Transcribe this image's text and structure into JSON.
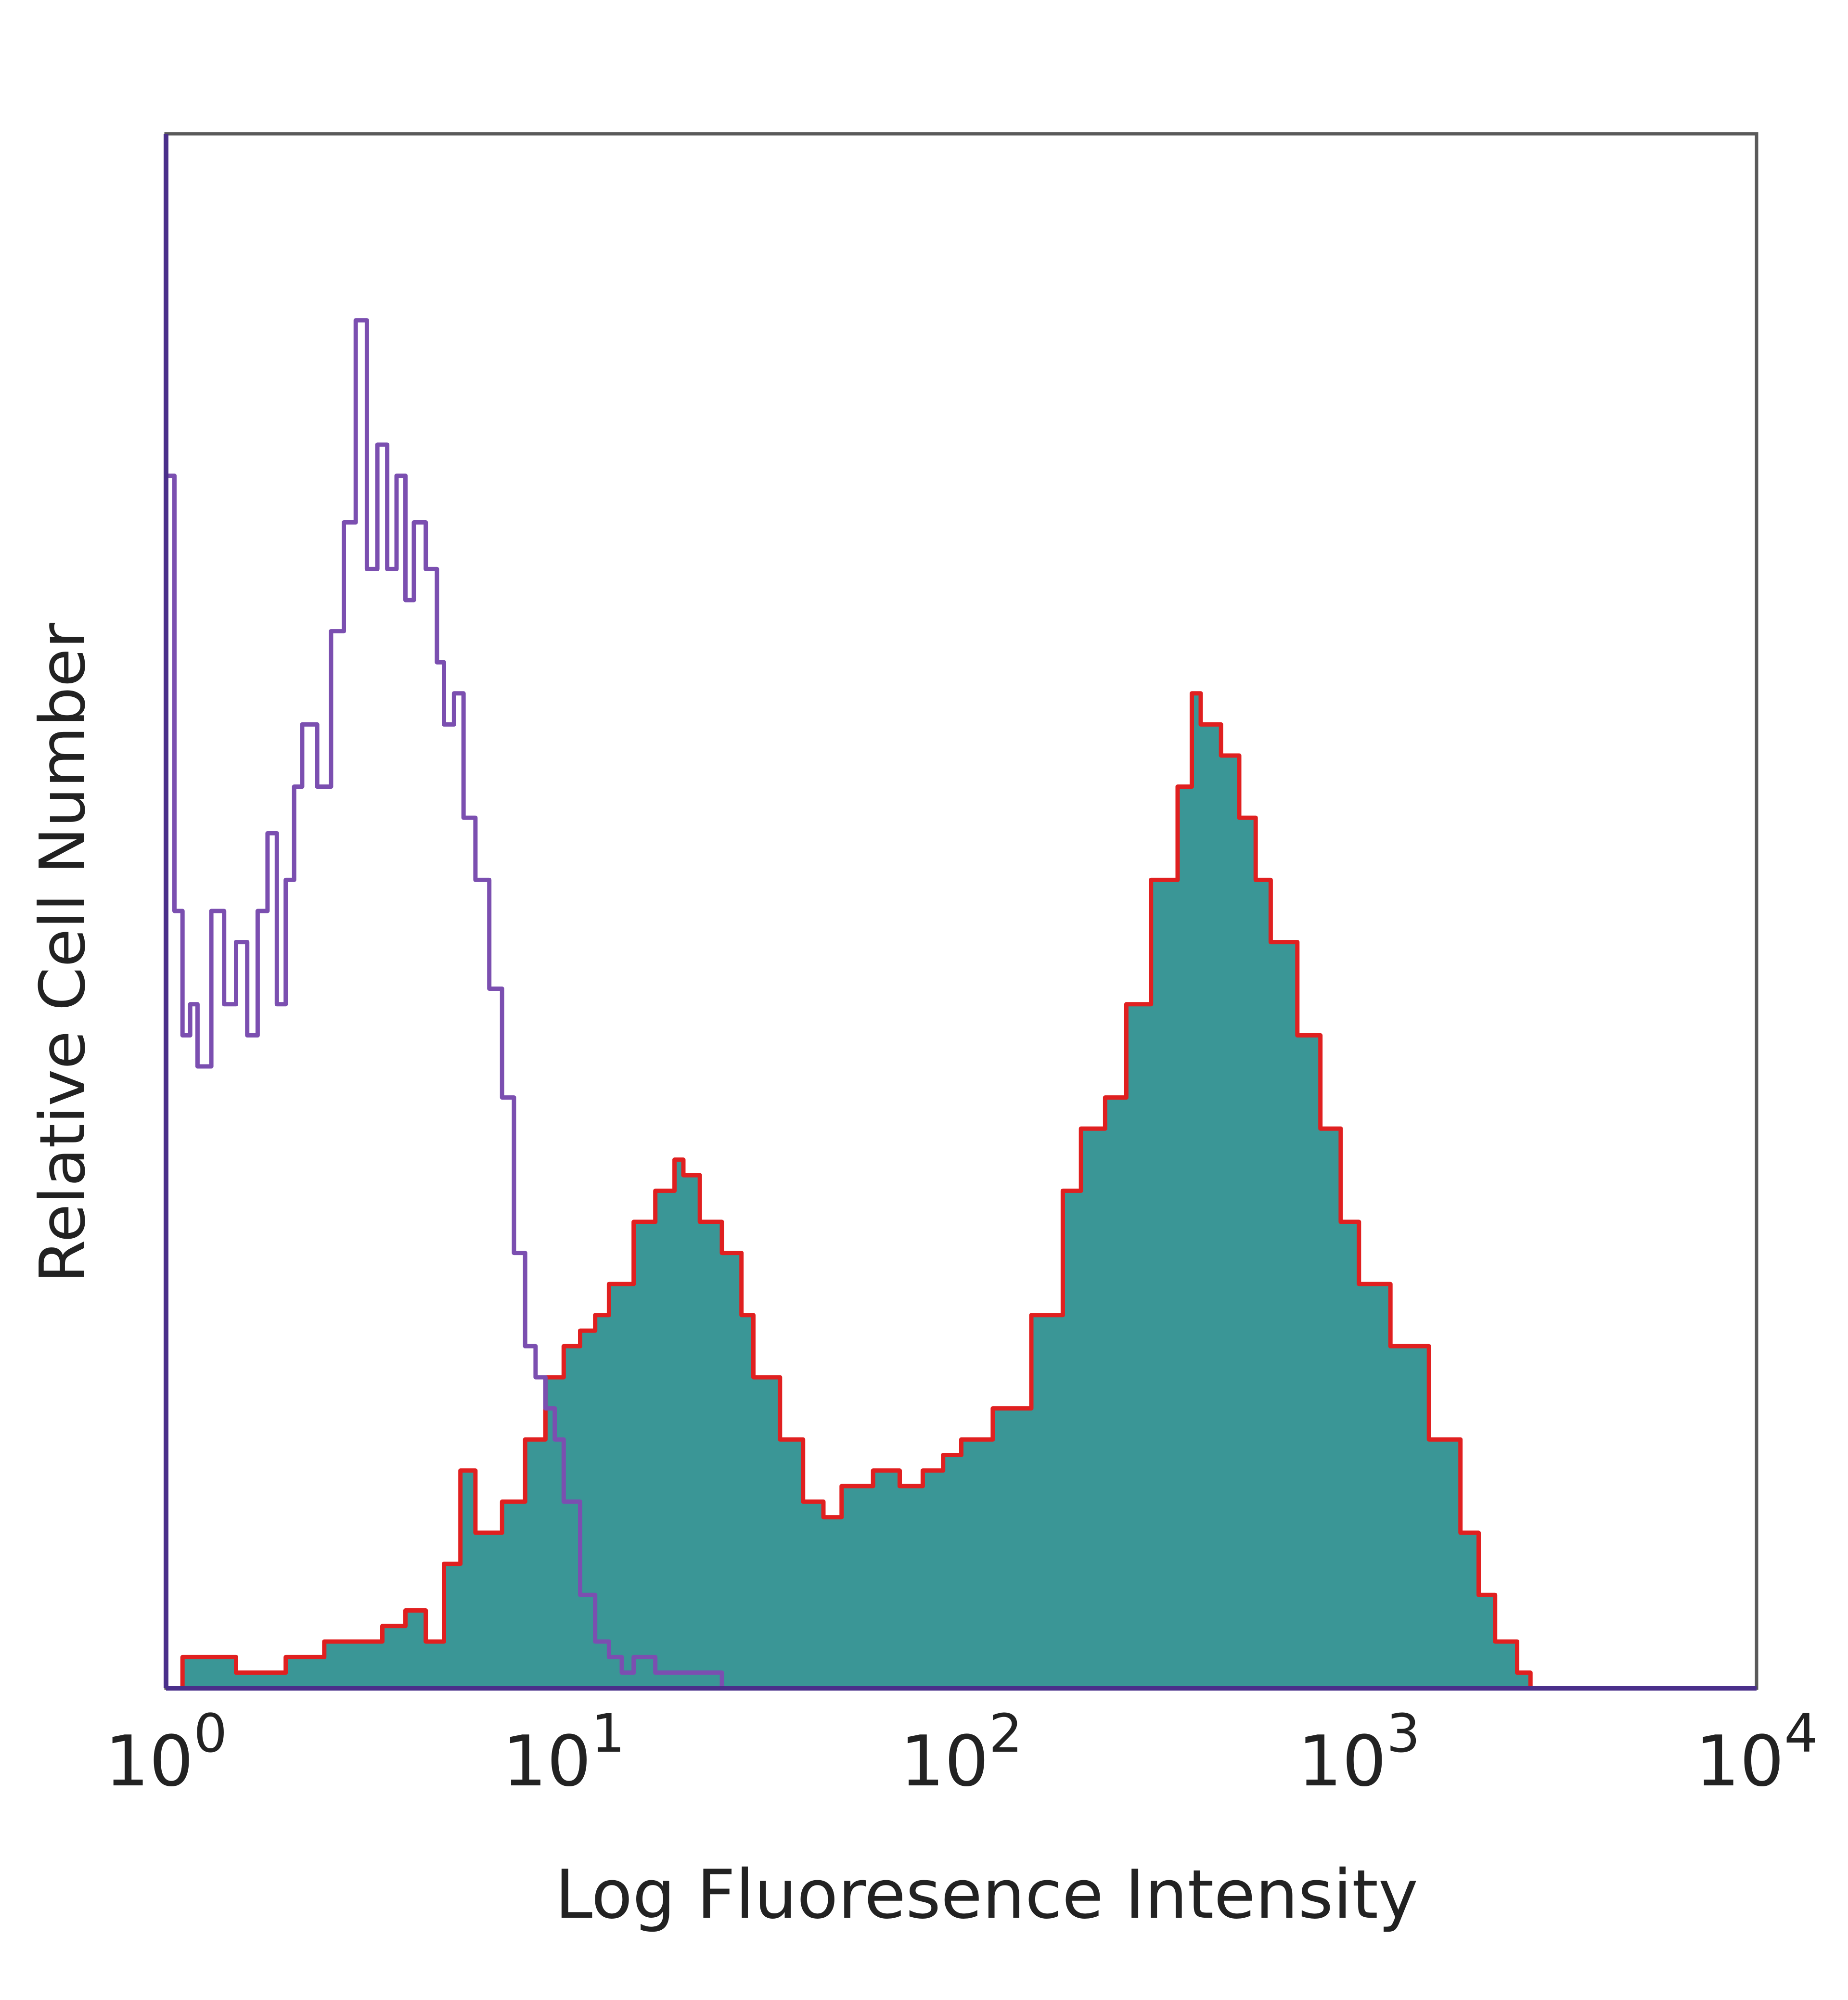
{
  "chart_data": {
    "type": "area",
    "title": "",
    "xlabel": "Log Fluoresence Intensity",
    "ylabel": "Relative Cell Number",
    "x_scale": "log",
    "xlim": [
      1,
      10000
    ],
    "ylim": [
      0,
      100
    ],
    "grid": false,
    "legend": "none",
    "x_ticks": [
      {
        "value": 1,
        "base": "10",
        "exp": "0"
      },
      {
        "value": 10,
        "base": "10",
        "exp": "1"
      },
      {
        "value": 100,
        "base": "10",
        "exp": "2"
      },
      {
        "value": 1000,
        "base": "10",
        "exp": "3"
      },
      {
        "value": 10000,
        "base": "10",
        "exp": "4"
      }
    ],
    "series": [
      {
        "color": "#7b4fb0",
        "style": "line",
        "x": [
          1.0,
          1.05,
          1.1,
          1.15,
          1.2,
          1.3,
          1.4,
          1.5,
          1.6,
          1.7,
          1.8,
          1.9,
          2.0,
          2.1,
          2.2,
          2.4,
          2.6,
          2.8,
          3.0,
          3.2,
          3.4,
          3.6,
          3.8,
          4.0,
          4.2,
          4.5,
          4.8,
          5.0,
          5.3,
          5.6,
          6.0,
          6.5,
          7.0,
          7.5,
          8.0,
          8.5,
          9.0,
          9.5,
          10.0,
          11.0,
          12.0,
          13.0,
          14.0,
          15.0,
          17.0,
          20.0,
          23.0,
          25.0
        ],
        "y": [
          78,
          50,
          42,
          44,
          40,
          50,
          44,
          48,
          42,
          50,
          55,
          44,
          52,
          58,
          62,
          58,
          68,
          75,
          88,
          72,
          80,
          72,
          78,
          70,
          75,
          72,
          66,
          62,
          64,
          56,
          52,
          45,
          38,
          28,
          22,
          20,
          18,
          16,
          12,
          6,
          3,
          2,
          1,
          2,
          1,
          1,
          1,
          0
        ]
      },
      {
        "color": "#e02020",
        "fill": "#3a9696",
        "style": "filled",
        "x": [
          1.0,
          1.1,
          1.2,
          1.5,
          2.0,
          2.5,
          3.0,
          3.5,
          4.0,
          4.5,
          5.0,
          5.5,
          6.0,
          7.0,
          8.0,
          9.0,
          10.0,
          11.0,
          12.0,
          13.0,
          15.0,
          17.0,
          19.0,
          20.0,
          22.0,
          25.0,
          28.0,
          30.0,
          35.0,
          40.0,
          45.0,
          50.0,
          60.0,
          70.0,
          80.0,
          90.0,
          100.0,
          120.0,
          150.0,
          180.0,
          200.0,
          230.0,
          260.0,
          300.0,
          350.0,
          380.0,
          400.0,
          450.0,
          500.0,
          550.0,
          600.0,
          700.0,
          800.0,
          900.0,
          1000.0,
          1200.0,
          1500.0,
          1800.0,
          2000.0,
          2200.0,
          2500.0,
          2700.0
        ],
        "y": [
          0,
          2,
          2,
          1,
          2,
          3,
          3,
          4,
          5,
          3,
          8,
          14,
          10,
          12,
          16,
          20,
          22,
          23,
          24,
          26,
          30,
          32,
          34,
          33,
          30,
          28,
          24,
          20,
          16,
          12,
          11,
          13,
          14,
          13,
          14,
          15,
          16,
          18,
          24,
          32,
          36,
          38,
          44,
          52,
          58,
          64,
          62,
          60,
          56,
          52,
          48,
          42,
          36,
          30,
          26,
          22,
          16,
          10,
          6,
          3,
          1,
          0
        ]
      }
    ]
  }
}
